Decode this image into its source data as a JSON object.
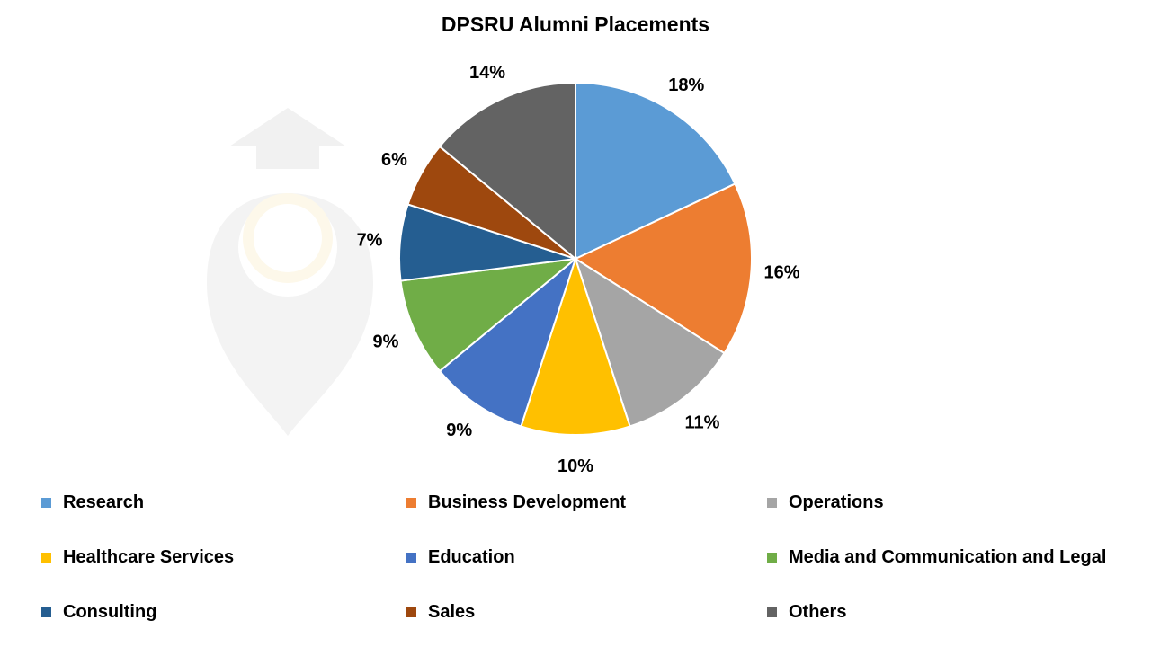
{
  "watermark": "shiksha",
  "chart_data": {
    "type": "pie",
    "title": "DPSRU Alumni Placements",
    "start_angle": "top, clockwise",
    "legend_position": "bottom",
    "slices": [
      {
        "label": "Research",
        "value": 18,
        "display": "18%",
        "color": "#5B9BD5"
      },
      {
        "label": "Business Development",
        "value": 16,
        "display": "16%",
        "color": "#ED7D31"
      },
      {
        "label": "Operations",
        "value": 11,
        "display": "11%",
        "color": "#A5A5A5"
      },
      {
        "label": "Healthcare Services",
        "value": 10,
        "display": "10%",
        "color": "#FFC000"
      },
      {
        "label": "Education",
        "value": 9,
        "display": "9%",
        "color": "#4472C4"
      },
      {
        "label": "Media and Communication and Legal",
        "value": 9,
        "display": "9%",
        "color": "#70AD47"
      },
      {
        "label": "Consulting",
        "value": 7,
        "display": "7%",
        "color": "#255E91"
      },
      {
        "label": "Sales",
        "value": 6,
        "display": "6%",
        "color": "#9E480E"
      },
      {
        "label": "Others",
        "value": 14,
        "display": "14%",
        "color": "#636363"
      }
    ]
  }
}
